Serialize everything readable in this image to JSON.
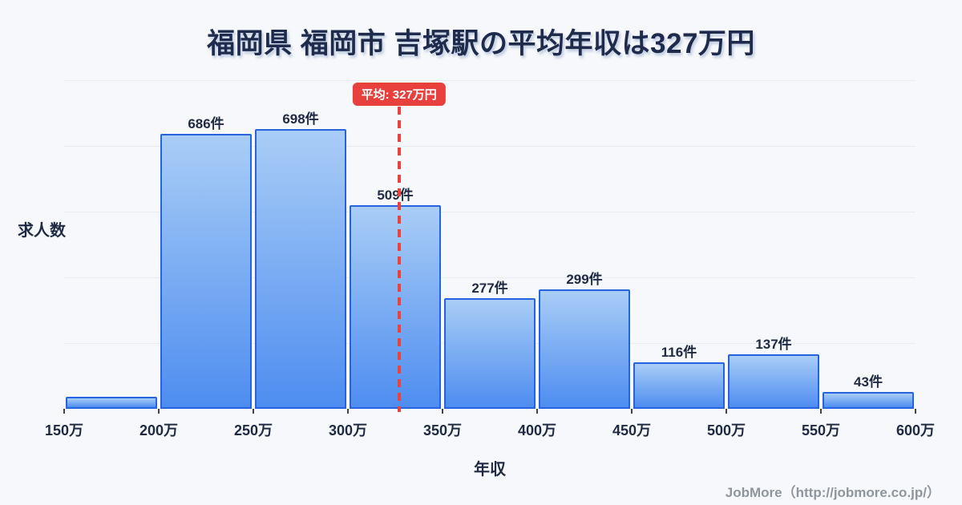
{
  "page": {
    "title": "福岡県 福岡市 吉塚駅の平均年収は327万円",
    "footer_credit": "JobMore（http://jobmore.co.jp/）"
  },
  "colors": {
    "background": "#f7f8fb",
    "text_navy": "#1e2a44",
    "bar_border": "#2563e3",
    "bar_gradient_top": "#a9cdf6",
    "bar_gradient_bottom": "#4e8df0",
    "gridline": "#e7ebf3",
    "average_red": "#e8403d",
    "footer_gray": "#8f969e"
  },
  "chart_data": {
    "type": "bar",
    "title": "福岡県 福岡市 吉塚駅の平均年収は327万円",
    "xlabel": "年収",
    "ylabel": "求人数",
    "x_tick_labels": [
      "150万",
      "200万",
      "250万",
      "300万",
      "350万",
      "400万",
      "450万",
      "500万",
      "550万",
      "600万"
    ],
    "x_range_man": [
      150,
      600
    ],
    "ylim": [
      0,
      820
    ],
    "grid": "horizontal, 5 divisions, no y tick labels",
    "legend": "none",
    "bars": [
      {
        "range_man": [
          150,
          200
        ],
        "count": 30,
        "label": "",
        "count_estimated_from_height": true
      },
      {
        "range_man": [
          200,
          250
        ],
        "count": 686,
        "label": "686件"
      },
      {
        "range_man": [
          250,
          300
        ],
        "count": 698,
        "label": "698件"
      },
      {
        "range_man": [
          300,
          350
        ],
        "count": 509,
        "label": "509件"
      },
      {
        "range_man": [
          350,
          400
        ],
        "count": 277,
        "label": "277件"
      },
      {
        "range_man": [
          400,
          450
        ],
        "count": 299,
        "label": "299件"
      },
      {
        "range_man": [
          450,
          500
        ],
        "count": 116,
        "label": "116件"
      },
      {
        "range_man": [
          500,
          550
        ],
        "count": 137,
        "label": "137件"
      },
      {
        "range_man": [
          550,
          600
        ],
        "count": 43,
        "label": "43件"
      }
    ],
    "average_line": {
      "value_man": 327,
      "badge_label": "平均: 327万円",
      "style": "red dashed vertical line over bars"
    }
  }
}
